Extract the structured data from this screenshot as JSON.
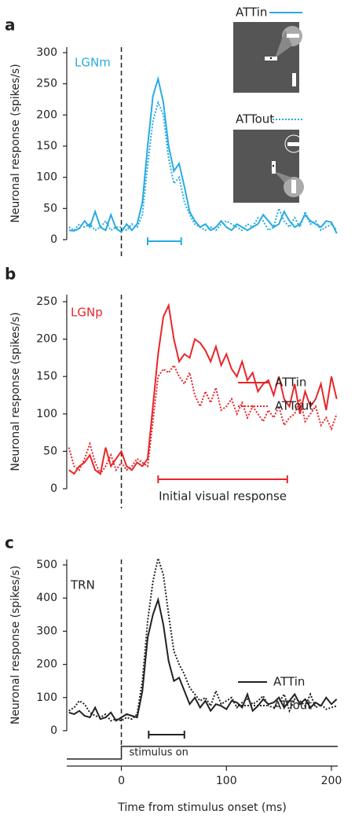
{
  "chart_data": [
    {
      "type": "line",
      "panel_label": "a",
      "title": "LGNm",
      "y_label": "Neuronal response (spikes/s)",
      "x": [
        -50,
        -45,
        -40,
        -35,
        -30,
        -25,
        -20,
        -15,
        -10,
        -5,
        0,
        5,
        10,
        15,
        20,
        25,
        30,
        35,
        40,
        45,
        50,
        55,
        60,
        65,
        70,
        75,
        80,
        85,
        90,
        95,
        100,
        105,
        110,
        115,
        120,
        125,
        130,
        135,
        140,
        145,
        150,
        155,
        160,
        165,
        170,
        175,
        180,
        185,
        190,
        195,
        200,
        205
      ],
      "xlim": [
        -52,
        206
      ],
      "ylim": [
        0,
        300
      ],
      "yticks": [
        0,
        50,
        100,
        150,
        200,
        250,
        300
      ],
      "window": [
        25,
        57
      ],
      "color": "#29abe2",
      "series": [
        {
          "name": "ATTin",
          "color": "#29abe2",
          "linestyle": "solid",
          "values": [
            15,
            14,
            18,
            30,
            20,
            45,
            20,
            15,
            40,
            18,
            12,
            25,
            15,
            25,
            60,
            150,
            230,
            258,
            220,
            150,
            110,
            122,
            85,
            45,
            30,
            20,
            25,
            15,
            20,
            30,
            20,
            15,
            25,
            20,
            15,
            20,
            25,
            40,
            30,
            20,
            25,
            45,
            30,
            20,
            25,
            40,
            30,
            25,
            20,
            30,
            28,
            10
          ]
        },
        {
          "name": "ATTout",
          "color": "#29abe2",
          "linestyle": "dotted",
          "values": [
            20,
            15,
            25,
            20,
            25,
            15,
            20,
            30,
            15,
            20,
            20,
            15,
            25,
            20,
            40,
            120,
            190,
            220,
            200,
            130,
            90,
            100,
            60,
            40,
            25,
            20,
            15,
            20,
            15,
            25,
            30,
            25,
            20,
            15,
            25,
            20,
            35,
            30,
            15,
            20,
            50,
            30,
            20,
            35,
            20,
            45,
            25,
            30,
            15,
            20,
            25,
            15
          ]
        }
      ]
    },
    {
      "type": "line",
      "panel_label": "b",
      "title": "LGNp",
      "y_label": "Neuronal response (spikes/s)",
      "x": [
        -50,
        -45,
        -40,
        -35,
        -30,
        -25,
        -20,
        -15,
        -10,
        -5,
        0,
        5,
        10,
        15,
        20,
        25,
        30,
        35,
        40,
        45,
        50,
        55,
        60,
        65,
        70,
        75,
        80,
        85,
        90,
        95,
        100,
        105,
        110,
        115,
        120,
        125,
        130,
        135,
        140,
        145,
        150,
        155,
        160,
        165,
        170,
        175,
        180,
        185,
        190,
        195,
        200,
        205
      ],
      "xlim": [
        -52,
        206
      ],
      "ylim": [
        0,
        250
      ],
      "yticks": [
        0,
        50,
        100,
        150,
        200,
        250
      ],
      "window": [
        35,
        158
      ],
      "window_label": "Initial visual response",
      "color": "#e8262a",
      "series": [
        {
          "name": "ATTin",
          "color": "#e8262a",
          "linestyle": "solid",
          "values": [
            25,
            20,
            30,
            35,
            45,
            25,
            20,
            55,
            30,
            40,
            50,
            30,
            25,
            35,
            30,
            40,
            110,
            180,
            230,
            245,
            200,
            170,
            180,
            175,
            200,
            195,
            185,
            170,
            190,
            165,
            180,
            160,
            150,
            170,
            145,
            155,
            130,
            140,
            145,
            125,
            150,
            120,
            110,
            140,
            100,
            130,
            110,
            120,
            140,
            105,
            150,
            120
          ]
        },
        {
          "name": "ATTout",
          "color": "#e8262a",
          "linestyle": "dotted",
          "values": [
            55,
            30,
            25,
            40,
            60,
            35,
            20,
            30,
            45,
            25,
            35,
            25,
            30,
            40,
            35,
            30,
            90,
            150,
            160,
            155,
            165,
            150,
            140,
            155,
            125,
            110,
            130,
            115,
            135,
            105,
            110,
            120,
            100,
            115,
            95,
            110,
            100,
            90,
            105,
            95,
            110,
            85,
            95,
            100,
            120,
            90,
            100,
            110,
            85,
            95,
            80,
            100
          ]
        }
      ]
    },
    {
      "type": "line",
      "panel_label": "c",
      "title": "TRN",
      "y_label": "Neuronal response (spikes/s)",
      "x_label": "Time from stimulus onset (ms)",
      "stimulus_label": "stimulus on",
      "x": [
        -50,
        -45,
        -40,
        -35,
        -30,
        -25,
        -20,
        -15,
        -10,
        -5,
        0,
        5,
        10,
        15,
        20,
        25,
        30,
        35,
        40,
        45,
        50,
        55,
        60,
        65,
        70,
        75,
        80,
        85,
        90,
        95,
        100,
        105,
        110,
        115,
        120,
        125,
        130,
        135,
        140,
        145,
        150,
        155,
        160,
        165,
        170,
        175,
        180,
        185,
        190,
        195,
        200,
        205
      ],
      "xlim": [
        -52,
        206
      ],
      "xticks": [
        0,
        100,
        200
      ],
      "ylim": [
        0,
        500
      ],
      "yticks": [
        0,
        100,
        200,
        300,
        400,
        500
      ],
      "window": [
        26,
        60
      ],
      "color": "#222222",
      "series": [
        {
          "name": "ATTin",
          "color": "#222222",
          "linestyle": "solid",
          "values": [
            55,
            50,
            60,
            45,
            40,
            70,
            35,
            40,
            55,
            30,
            40,
            50,
            45,
            40,
            120,
            280,
            350,
            395,
            320,
            210,
            150,
            160,
            120,
            80,
            100,
            70,
            90,
            60,
            80,
            75,
            65,
            90,
            85,
            70,
            110,
            60,
            75,
            95,
            80,
            85,
            100,
            70,
            90,
            110,
            80,
            95,
            70,
            85,
            75,
            100,
            80,
            95
          ]
        },
        {
          "name": "ATTout",
          "color": "#222222",
          "linestyle": "dotted",
          "values": [
            60,
            70,
            90,
            80,
            55,
            45,
            40,
            50,
            30,
            35,
            30,
            40,
            35,
            50,
            150,
            330,
            450,
            520,
            470,
            350,
            240,
            200,
            170,
            130,
            110,
            90,
            100,
            75,
            120,
            80,
            90,
            100,
            70,
            85,
            95,
            80,
            90,
            105,
            75,
            70,
            85,
            110,
            60,
            95,
            90,
            75,
            110,
            70,
            80,
            65,
            70,
            75
          ]
        }
      ]
    }
  ]
}
